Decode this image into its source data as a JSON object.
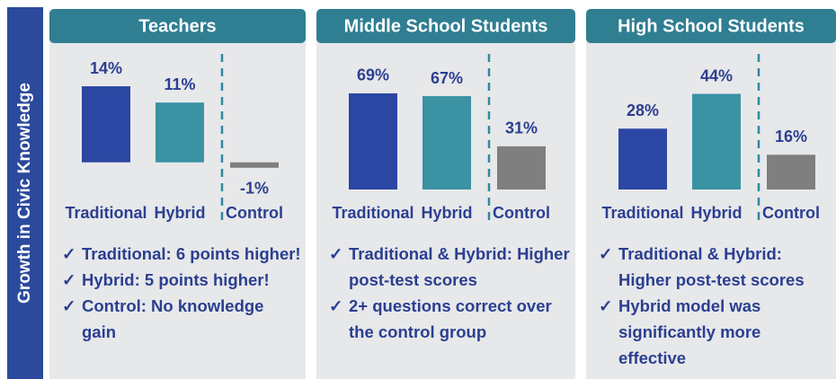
{
  "ylabel": "Growth in Civic Knowledge",
  "chart_data": [
    {
      "type": "bar",
      "title": "Teachers",
      "categories": [
        "Traditional",
        "Hybrid",
        "Control"
      ],
      "values": [
        14,
        11,
        -1
      ],
      "value_labels": [
        "14%",
        "11%",
        "-1%"
      ],
      "colors": [
        "#2b47a3",
        "#3a92a3",
        "#7f7f7f"
      ],
      "ylim": [
        -5,
        15
      ],
      "annotations": [
        "Traditional: 6 points higher!",
        "Hybrid: 5 points higher!",
        "Control: No knowledge gain"
      ]
    },
    {
      "type": "bar",
      "title": "Middle School Students",
      "categories": [
        "Traditional",
        "Hybrid",
        "Control"
      ],
      "values": [
        69,
        67,
        31
      ],
      "value_labels": [
        "69%",
        "67%",
        "31%"
      ],
      "colors": [
        "#2b47a3",
        "#3a92a3",
        "#7f7f7f"
      ],
      "ylim": [
        0,
        78
      ],
      "annotations": [
        "Traditional & Hybrid: Higher post-test scores",
        "2+ questions correct over the control group"
      ]
    },
    {
      "type": "bar",
      "title": "High School Students",
      "categories": [
        "Traditional",
        "Hybrid",
        "Control"
      ],
      "values": [
        28,
        44,
        16
      ],
      "value_labels": [
        "28%",
        "44%",
        "16%"
      ],
      "colors": [
        "#2b47a3",
        "#3a92a3",
        "#7f7f7f"
      ],
      "ylim": [
        0,
        50
      ],
      "annotations": [
        "Traditional & Hybrid: Higher post-test scores",
        "Hybrid model was significantly more effective"
      ]
    }
  ]
}
